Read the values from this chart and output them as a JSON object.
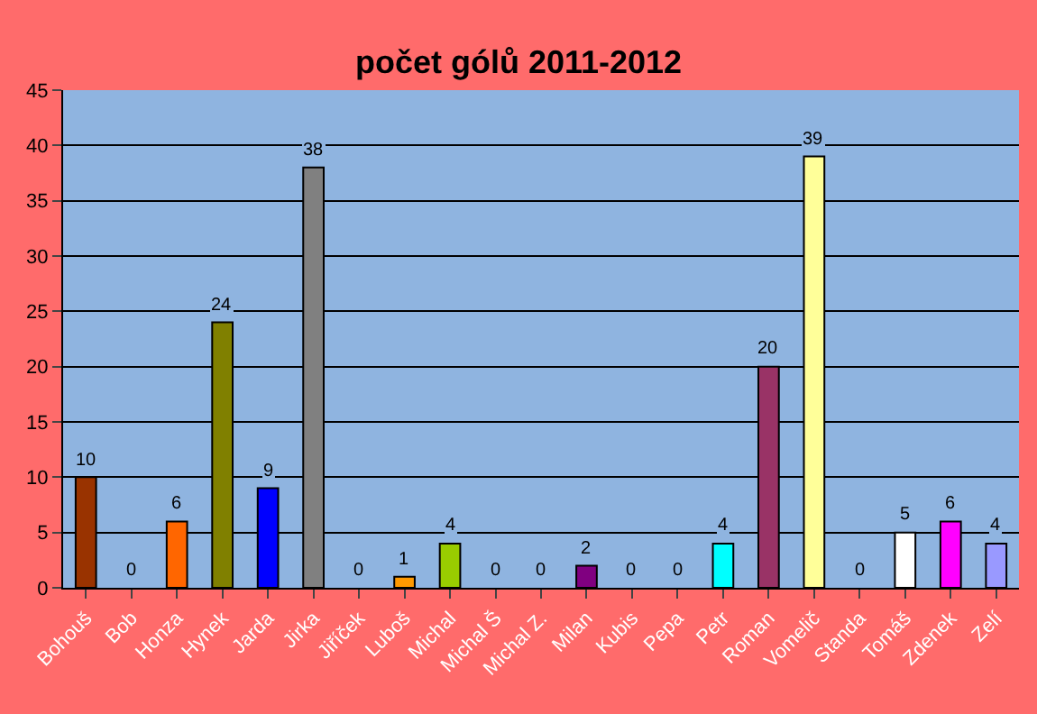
{
  "chart_data": {
    "type": "bar",
    "title": "počet gólů 2011-2012",
    "categories": [
      "Bohouš",
      "Bob",
      "Honza",
      "Hynek",
      "Jarda",
      "Jirka",
      "Jiříček",
      "Luboš",
      "Michal",
      "Michal Š",
      "Michal Z.",
      "Milan",
      "Kubis",
      "Pepa",
      "Petr",
      "Roman",
      "Vomelič",
      "Standa",
      "Tomáš",
      "Zdenek",
      "Zelí"
    ],
    "values": [
      10,
      0,
      6,
      24,
      9,
      38,
      0,
      1,
      4,
      0,
      0,
      2,
      0,
      0,
      4,
      20,
      39,
      0,
      5,
      6,
      4
    ],
    "colors": [
      "#993300",
      null,
      "#ff6600",
      "#808000",
      "#0000ff",
      "#808080",
      null,
      "#ff9900",
      "#99cc00",
      null,
      null,
      "#800080",
      null,
      null,
      "#00ffff",
      "#993366",
      "#ffff99",
      null,
      "#ffffff",
      "#ff00ff",
      "#9999ff"
    ],
    "ylim": [
      0,
      45
    ],
    "yticks": [
      0,
      5,
      10,
      15,
      20,
      25,
      30,
      35,
      40,
      45
    ],
    "grid": "y",
    "data_labels": true,
    "legend": false
  }
}
